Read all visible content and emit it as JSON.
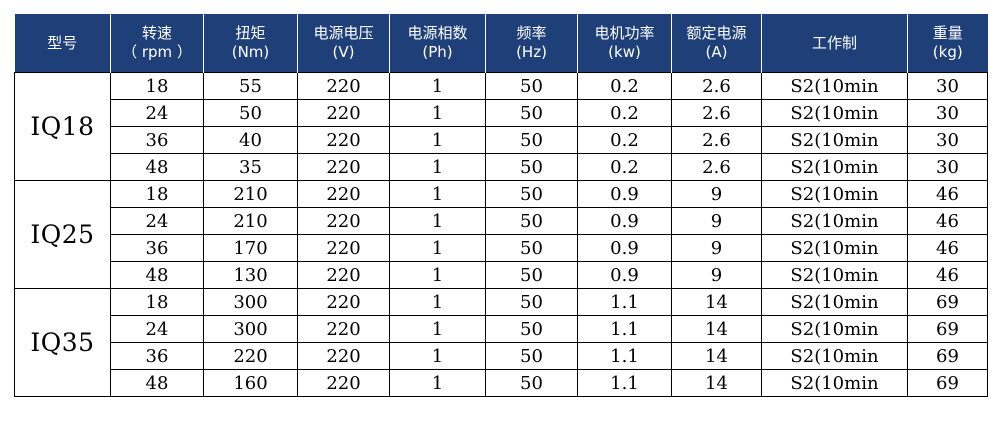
{
  "headers": [
    {
      "label": "型号",
      "unit": ""
    },
    {
      "label": "转速",
      "unit": "（ rpm ）"
    },
    {
      "label": "扭矩",
      "unit": "(Nm)"
    },
    {
      "label": "电源电压",
      "unit": "(V)"
    },
    {
      "label": "电源相数",
      "unit": "(Ph)"
    },
    {
      "label": "频率",
      "unit": "(Hz)"
    },
    {
      "label": "电机功率",
      "unit": "(kw)"
    },
    {
      "label": "额定电源",
      "unit": "(A)"
    },
    {
      "label": "工作制",
      "unit": ""
    },
    {
      "label": "重量",
      "unit": "(kg)"
    }
  ],
  "groups": [
    {
      "model": "IQ18",
      "rows": [
        [
          "18",
          "55",
          "220",
          "1",
          "50",
          "0.2",
          "2.6",
          "S2(10min",
          "30"
        ],
        [
          "24",
          "50",
          "220",
          "1",
          "50",
          "0.2",
          "2.6",
          "S2(10min",
          "30"
        ],
        [
          "36",
          "40",
          "220",
          "1",
          "50",
          "0.2",
          "2.6",
          "S2(10min",
          "30"
        ],
        [
          "48",
          "35",
          "220",
          "1",
          "50",
          "0.2",
          "2.6",
          "S2(10min",
          "30"
        ]
      ]
    },
    {
      "model": "IQ25",
      "rows": [
        [
          "18",
          "210",
          "220",
          "1",
          "50",
          "0.9",
          "9",
          "S2(10min",
          "46"
        ],
        [
          "24",
          "210",
          "220",
          "1",
          "50",
          "0.9",
          "9",
          "S2(10min",
          "46"
        ],
        [
          "36",
          "170",
          "220",
          "1",
          "50",
          "0.9",
          "9",
          "S2(10min",
          "46"
        ],
        [
          "48",
          "130",
          "220",
          "1",
          "50",
          "0.9",
          "9",
          "S2(10min",
          "46"
        ]
      ]
    },
    {
      "model": "IQ35",
      "rows": [
        [
          "18",
          "300",
          "220",
          "1",
          "50",
          "1.1",
          "14",
          "S2(10min",
          "69"
        ],
        [
          "24",
          "300",
          "220",
          "1",
          "50",
          "1.1",
          "14",
          "S2(10min",
          "69"
        ],
        [
          "36",
          "220",
          "220",
          "1",
          "50",
          "1.1",
          "14",
          "S2(10min",
          "69"
        ],
        [
          "48",
          "160",
          "220",
          "1",
          "50",
          "1.1",
          "14",
          "S2(10min",
          "69"
        ]
      ]
    }
  ],
  "colors": {
    "header_bg": "#1f3f78",
    "header_text": "#ffffff",
    "grid": "#000000"
  }
}
